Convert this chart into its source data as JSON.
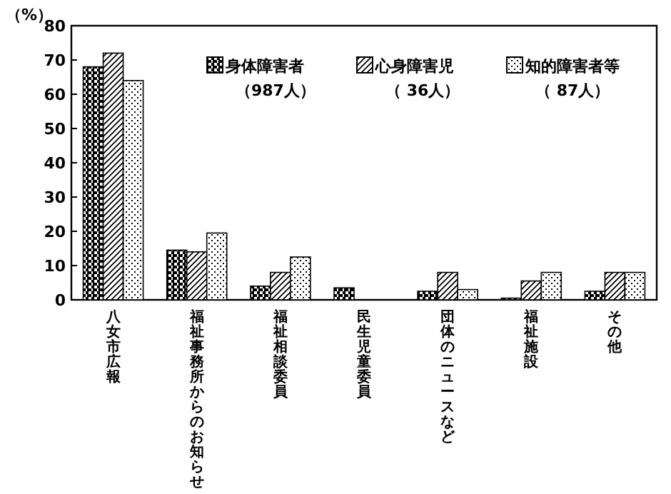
{
  "chart_data": {
    "type": "bar",
    "ylabel": "（%）",
    "categories": [
      "八女市広報",
      "福祉事務所からのお知らせ",
      "福祉相談委員",
      "民生児童委員",
      "団体のニュースなど",
      "福祉施設",
      "その他"
    ],
    "series": [
      {
        "name": "身体障害者（987人）",
        "color": "#000000",
        "values": [
          68,
          14.5,
          4,
          3.5,
          2.5,
          0.5,
          2.5
        ]
      },
      {
        "name": "心身障害児（ 36人）",
        "color": "#000000",
        "values": [
          72,
          14,
          8,
          0,
          8,
          5.5,
          8
        ]
      },
      {
        "name": "知的障害者等（ 87人）",
        "color": "#000000",
        "values": [
          64,
          19.5,
          12.5,
          0,
          3,
          8,
          8
        ]
      }
    ],
    "ylim": [
      0,
      80
    ],
    "yticks": [
      0,
      10,
      20,
      30,
      40,
      50,
      60,
      70,
      80
    ],
    "grid": false,
    "legend": "top right"
  }
}
